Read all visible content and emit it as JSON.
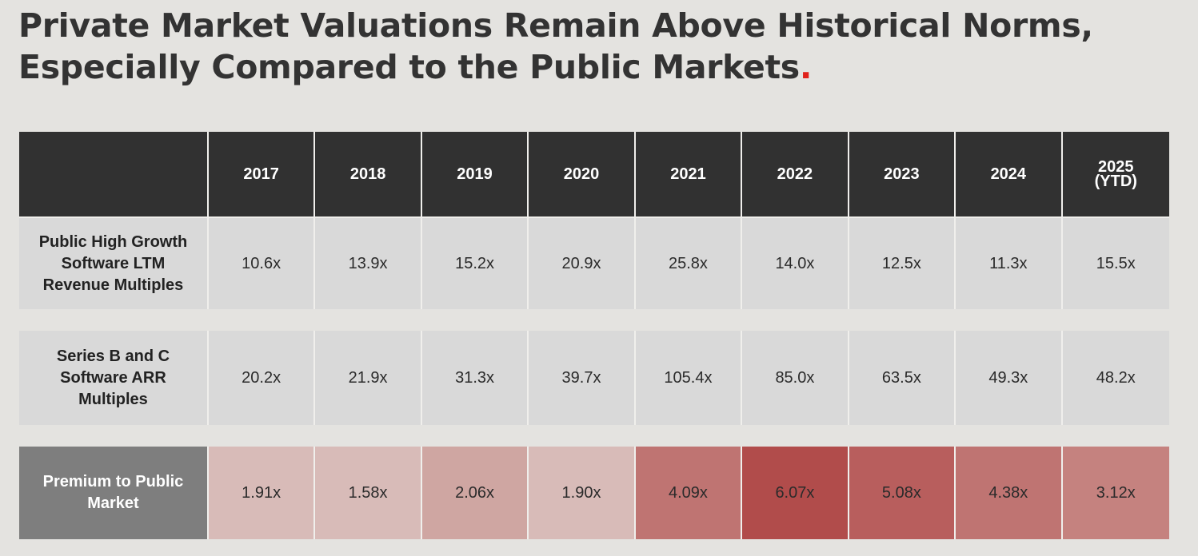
{
  "title_line1": "Private Market Valuations Remain Above Historical Norms,",
  "title_line2": "Especially Compared to the Public Markets",
  "title_dot": ".",
  "colors": {
    "background": "#e4e3e0",
    "header_bg": "#313131",
    "row_bg": "#d9d9d9",
    "premium_label_bg": "#7e7e7e",
    "accent_dot": "#e0211b"
  },
  "chart_data": {
    "type": "table",
    "columns": [
      "2017",
      "2018",
      "2019",
      "2020",
      "2021",
      "2022",
      "2023",
      "2024",
      "2025\n(YTD)"
    ],
    "rows": [
      {
        "label": "Public High Growth Software LTM Revenue Multiples",
        "values": [
          "10.6x",
          "13.9x",
          "15.2x",
          "20.9x",
          "25.8x",
          "14.0x",
          "12.5x",
          "11.3x",
          "15.5x"
        ]
      },
      {
        "label": "Series B and C Software ARR Multiples",
        "values": [
          "20.2x",
          "21.9x",
          "31.3x",
          "39.7x",
          "105.4x",
          "85.0x",
          "63.5x",
          "49.3x",
          "48.2x"
        ]
      },
      {
        "label": "Premium to Public Market",
        "values": [
          "1.91x",
          "1.58x",
          "2.06x",
          "1.90x",
          "4.09x",
          "6.07x",
          "5.08x",
          "4.38x",
          "3.12x"
        ],
        "cell_colors": [
          "#d8bbb8",
          "#d8bbb8",
          "#cfa6a2",
          "#d8bbb8",
          "#bf7472",
          "#b14c4b",
          "#b85e5d",
          "#bf7472",
          "#c5827f"
        ]
      }
    ]
  }
}
